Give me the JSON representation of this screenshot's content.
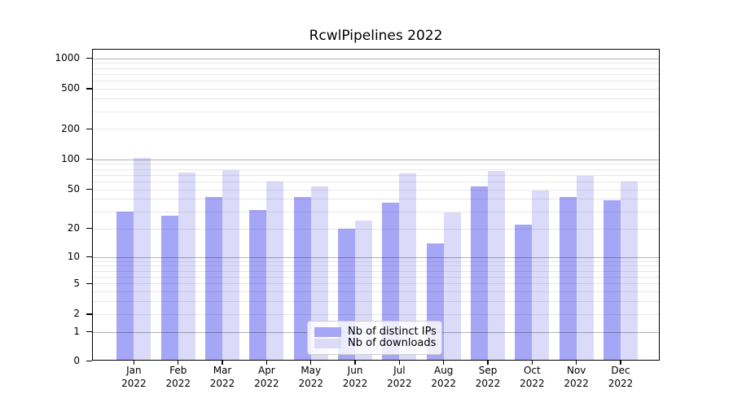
{
  "title": "RcwlPipelines 2022",
  "colors": {
    "distinct_ips_bar": "#a6a6f6",
    "downloads_bar": "#dbdbf9",
    "grid_major": "#b3b3b3",
    "grid_minor": "#e8e8e8",
    "axis": "#000000",
    "legend_border": "#cccccc"
  },
  "legend": {
    "items": [
      {
        "label": "Nb of distinct IPs",
        "color": "#a6a6f6"
      },
      {
        "label": "Nb of downloads",
        "color": "#dbdbf9"
      }
    ]
  },
  "chart_data": {
    "type": "bar",
    "title": "RcwlPipelines 2022",
    "months": [
      "Jan",
      "Feb",
      "Mar",
      "Apr",
      "May",
      "Jun",
      "Jul",
      "Aug",
      "Sep",
      "Oct",
      "Nov",
      "Dec"
    ],
    "year": "2022",
    "categories": [
      "Jan 2022",
      "Feb 2022",
      "Mar 2022",
      "Apr 2022",
      "May 2022",
      "Jun 2022",
      "Jul 2022",
      "Aug 2022",
      "Sep 2022",
      "Oct 2022",
      "Nov 2022",
      "Dec 2022"
    ],
    "series": [
      {
        "name": "Nb of distinct IPs",
        "color": "#a6a6f6",
        "values": [
          30,
          27,
          42,
          31,
          42,
          20,
          37,
          14,
          53,
          22,
          42,
          39
        ]
      },
      {
        "name": "Nb of downloads",
        "color": "#dbdbf9",
        "values": [
          103,
          74,
          78,
          60,
          54,
          24,
          72,
          29,
          76,
          49,
          68,
          60
        ]
      }
    ],
    "xlabel": "",
    "ylabel": "",
    "y_scale": "log1p",
    "y_ticks": [
      0,
      1,
      2,
      5,
      10,
      20,
      50,
      100,
      200,
      500,
      1000
    ],
    "ylim": [
      0,
      1230
    ],
    "grid": {
      "major_lines": [
        1,
        10,
        100,
        1000
      ],
      "minor_subs": [
        2,
        3,
        4,
        5,
        6,
        7,
        8,
        9
      ],
      "visible": true
    },
    "legend_position": "lower center"
  }
}
